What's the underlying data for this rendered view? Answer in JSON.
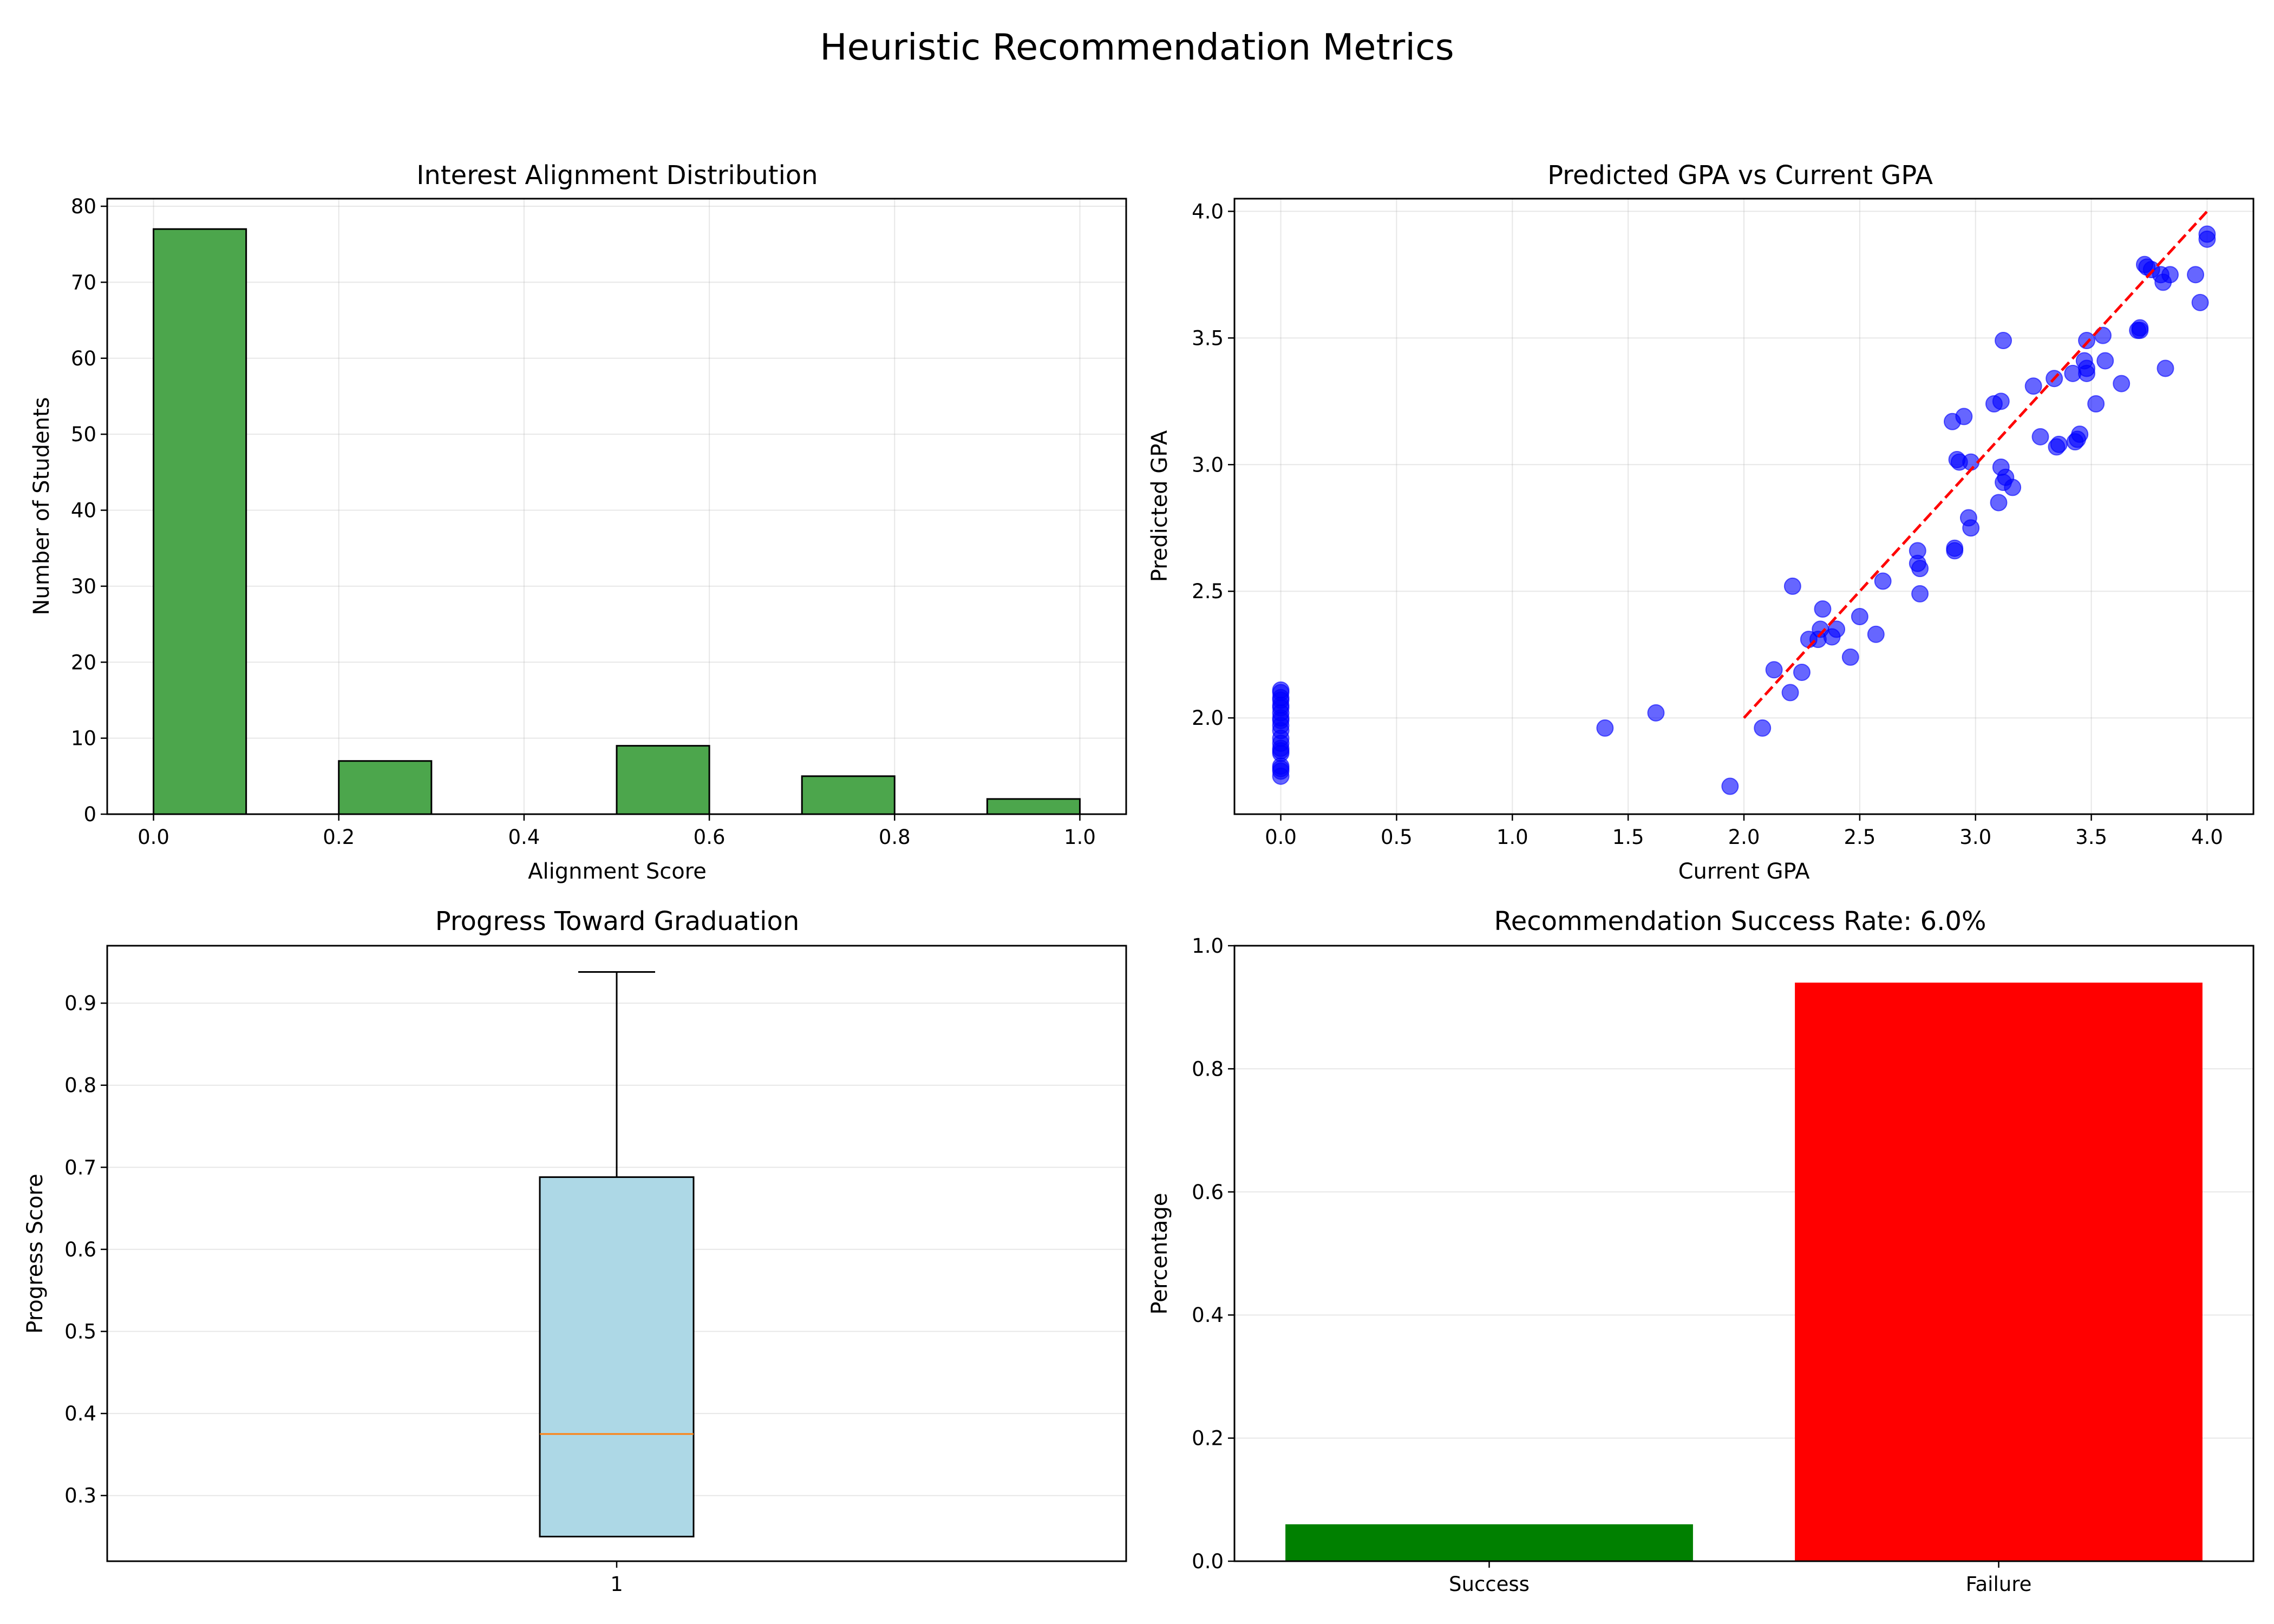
{
  "figure": {
    "title": "Heuristic Recommendation Metrics"
  },
  "chart_data": [
    {
      "type": "bar",
      "subtype": "histogram",
      "title": "Interest Alignment Distribution",
      "xlabel": "Alignment Score",
      "ylabel": "Number of Students",
      "xlim": [
        -0.05,
        1.05
      ],
      "ylim": [
        0,
        81
      ],
      "xticks": [
        0.0,
        0.2,
        0.4,
        0.6,
        0.8,
        1.0
      ],
      "xtick_labels": [
        "0.0",
        "0.2",
        "0.4",
        "0.6",
        "0.8",
        "1.0"
      ],
      "yticks": [
        0,
        10,
        20,
        30,
        40,
        50,
        60,
        70,
        80
      ],
      "ytick_labels": [
        "0",
        "10",
        "20",
        "30",
        "40",
        "50",
        "60",
        "70",
        "80"
      ],
      "bins": [
        {
          "x0": 0.0,
          "x1": 0.1,
          "count": 77
        },
        {
          "x0": 0.1,
          "x1": 0.2,
          "count": 0
        },
        {
          "x0": 0.2,
          "x1": 0.3,
          "count": 7
        },
        {
          "x0": 0.3,
          "x1": 0.4,
          "count": 0
        },
        {
          "x0": 0.4,
          "x1": 0.5,
          "count": 0
        },
        {
          "x0": 0.5,
          "x1": 0.6,
          "count": 9
        },
        {
          "x0": 0.6,
          "x1": 0.7,
          "count": 0
        },
        {
          "x0": 0.7,
          "x1": 0.8,
          "count": 5
        },
        {
          "x0": 0.8,
          "x1": 0.9,
          "count": 0
        },
        {
          "x0": 0.9,
          "x1": 1.0,
          "count": 2
        }
      ],
      "color": "#4ca64c",
      "edge_color": "#000000",
      "grid": true
    },
    {
      "type": "scatter",
      "title": "Predicted GPA vs Current GPA",
      "xlabel": "Current GPA",
      "ylabel": "Predicted GPA",
      "xlim": [
        -0.2,
        4.2
      ],
      "ylim": [
        1.62,
        4.05
      ],
      "xticks": [
        0.0,
        0.5,
        1.0,
        1.5,
        2.0,
        2.5,
        3.0,
        3.5,
        4.0
      ],
      "xtick_labels": [
        "0.0",
        "0.5",
        "1.0",
        "1.5",
        "2.0",
        "2.5",
        "3.0",
        "3.5",
        "4.0"
      ],
      "yticks": [
        2.0,
        2.5,
        3.0,
        3.5,
        4.0
      ],
      "ytick_labels": [
        "2.0",
        "2.5",
        "3.0",
        "3.5",
        "4.0"
      ],
      "point_color": "#0000ff",
      "point_alpha": 0.6,
      "reference_line": {
        "x": [
          2.0,
          4.0
        ],
        "y": [
          2.0,
          4.0
        ],
        "color": "#ff0000",
        "style": "dashed"
      },
      "points": [
        [
          0,
          1.77
        ],
        [
          0,
          1.79
        ],
        [
          0,
          1.8
        ],
        [
          0,
          1.81
        ],
        [
          0,
          1.86
        ],
        [
          0,
          1.87
        ],
        [
          0,
          1.88
        ],
        [
          0,
          1.9
        ],
        [
          0,
          1.92
        ],
        [
          0,
          1.95
        ],
        [
          0,
          1.97
        ],
        [
          0,
          1.99
        ],
        [
          0,
          2.0
        ],
        [
          0,
          2.02
        ],
        [
          0,
          2.04
        ],
        [
          0,
          2.05
        ],
        [
          0,
          2.07
        ],
        [
          0,
          2.08
        ],
        [
          0,
          2.1
        ],
        [
          0,
          2.11
        ],
        [
          1.4,
          1.96
        ],
        [
          1.62,
          2.02
        ],
        [
          1.94,
          1.73
        ],
        [
          2.08,
          1.96
        ],
        [
          2.13,
          2.19
        ],
        [
          2.2,
          2.1
        ],
        [
          2.21,
          2.52
        ],
        [
          2.25,
          2.18
        ],
        [
          2.28,
          2.31
        ],
        [
          2.32,
          2.31
        ],
        [
          2.33,
          2.35
        ],
        [
          2.34,
          2.43
        ],
        [
          2.38,
          2.32
        ],
        [
          2.4,
          2.35
        ],
        [
          2.46,
          2.24
        ],
        [
          2.5,
          2.4
        ],
        [
          2.57,
          2.33
        ],
        [
          2.6,
          2.54
        ],
        [
          2.75,
          2.61
        ],
        [
          2.75,
          2.66
        ],
        [
          2.76,
          2.59
        ],
        [
          2.76,
          2.49
        ],
        [
          2.9,
          3.17
        ],
        [
          2.91,
          2.67
        ],
        [
          2.91,
          2.66
        ],
        [
          2.92,
          3.02
        ],
        [
          2.93,
          3.01
        ],
        [
          2.95,
          3.19
        ],
        [
          2.97,
          2.79
        ],
        [
          2.98,
          2.75
        ],
        [
          2.98,
          3.01
        ],
        [
          3.08,
          3.24
        ],
        [
          3.1,
          2.85
        ],
        [
          3.11,
          2.99
        ],
        [
          3.11,
          3.25
        ],
        [
          3.12,
          2.93
        ],
        [
          3.12,
          3.49
        ],
        [
          3.13,
          2.95
        ],
        [
          3.16,
          2.91
        ],
        [
          3.25,
          3.31
        ],
        [
          3.28,
          3.11
        ],
        [
          3.34,
          3.34
        ],
        [
          3.35,
          3.07
        ],
        [
          3.36,
          3.08
        ],
        [
          3.42,
          3.36
        ],
        [
          3.43,
          3.09
        ],
        [
          3.44,
          3.1
        ],
        [
          3.45,
          3.12
        ],
        [
          3.47,
          3.41
        ],
        [
          3.48,
          3.49
        ],
        [
          3.48,
          3.38
        ],
        [
          3.48,
          3.36
        ],
        [
          3.52,
          3.24
        ],
        [
          3.55,
          3.51
        ],
        [
          3.56,
          3.41
        ],
        [
          3.63,
          3.32
        ],
        [
          3.7,
          3.53
        ],
        [
          3.71,
          3.54
        ],
        [
          3.71,
          3.53
        ],
        [
          3.73,
          3.79
        ],
        [
          3.74,
          3.78
        ],
        [
          3.76,
          3.77
        ],
        [
          3.8,
          3.75
        ],
        [
          3.81,
          3.72
        ],
        [
          3.82,
          3.38
        ],
        [
          3.84,
          3.75
        ],
        [
          3.95,
          3.75
        ],
        [
          3.97,
          3.64
        ],
        [
          4.0,
          3.89
        ],
        [
          4.0,
          3.91
        ]
      ],
      "grid": true
    },
    {
      "type": "box",
      "title": "Progress Toward Graduation",
      "xlabel": "",
      "ylabel": "Progress Score",
      "ylim": [
        0.22,
        0.97
      ],
      "yticks": [
        0.3,
        0.4,
        0.5,
        0.6,
        0.7,
        0.8,
        0.9
      ],
      "ytick_labels": [
        "0.3",
        "0.4",
        "0.5",
        "0.6",
        "0.7",
        "0.8",
        "0.9"
      ],
      "categories": [
        "1"
      ],
      "box": {
        "whisker_low": 0.25,
        "q1": 0.25,
        "median": 0.375,
        "q3": 0.688,
        "whisker_high": 0.938
      },
      "box_color": "#add8e6",
      "median_color": "#ff7f0e",
      "grid": true
    },
    {
      "type": "bar",
      "title": "Recommendation Success Rate: 6.0%",
      "xlabel": "",
      "ylabel": "Percentage",
      "ylim": [
        0,
        1.0
      ],
      "yticks": [
        0.0,
        0.2,
        0.4,
        0.6,
        0.8,
        1.0
      ],
      "ytick_labels": [
        "0.0",
        "0.2",
        "0.4",
        "0.6",
        "0.8",
        "1.0"
      ],
      "categories": [
        "Success",
        "Failure"
      ],
      "values": [
        0.06,
        0.94
      ],
      "colors": [
        "#008000",
        "#ff0000"
      ],
      "grid": true
    }
  ]
}
